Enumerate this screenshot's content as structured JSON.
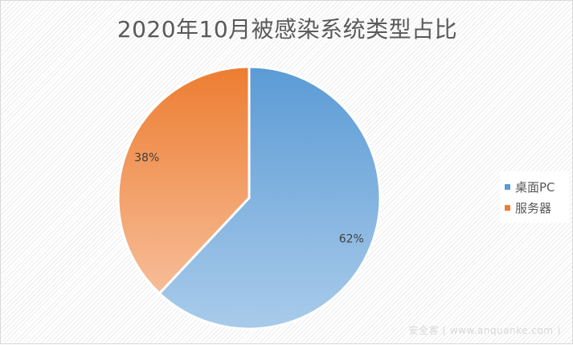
{
  "chart_data": {
    "type": "pie",
    "title": "2020年10月被感染系统类型占比",
    "categories": [
      "桌面PC",
      "服务器"
    ],
    "values": [
      62,
      38
    ],
    "data_labels": [
      "62%",
      "38%"
    ],
    "colors": [
      "#5b9bd5",
      "#ed7d31"
    ],
    "legend_placement": "right"
  },
  "watermark": "安全客 ( www.anquanke.com )"
}
